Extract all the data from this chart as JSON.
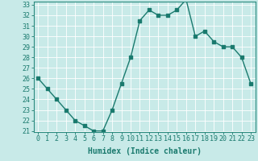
{
  "x": [
    0,
    1,
    2,
    3,
    4,
    5,
    6,
    7,
    8,
    9,
    10,
    11,
    12,
    13,
    14,
    15,
    16,
    17,
    18,
    19,
    20,
    21,
    22,
    23
  ],
  "y": [
    26,
    25,
    24,
    23,
    22,
    21.5,
    21,
    21,
    23,
    25.5,
    28,
    31.5,
    32.5,
    32,
    32,
    32.5,
    33.5,
    30,
    30.5,
    29.5,
    29,
    29,
    28,
    25.5
  ],
  "xlabel": "Humidex (Indice chaleur)",
  "ylabel": "",
  "ylim": [
    21,
    33
  ],
  "xlim": [
    -0.5,
    23.5
  ],
  "yticks": [
    21,
    22,
    23,
    24,
    25,
    26,
    27,
    28,
    29,
    30,
    31,
    32,
    33
  ],
  "xticks": [
    0,
    1,
    2,
    3,
    4,
    5,
    6,
    7,
    8,
    9,
    10,
    11,
    12,
    13,
    14,
    15,
    16,
    17,
    18,
    19,
    20,
    21,
    22,
    23
  ],
  "line_color": "#1a7a6e",
  "marker_color": "#1a7a6e",
  "bg_color": "#c8eae8",
  "grid_color": "#ffffff",
  "axis_color": "#2a8a7e",
  "tick_color": "#1a7a6e",
  "label_color": "#1a7a6e",
  "xlabel_fontsize": 7,
  "tick_fontsize": 6,
  "line_width": 1.0,
  "marker_size": 2.5
}
